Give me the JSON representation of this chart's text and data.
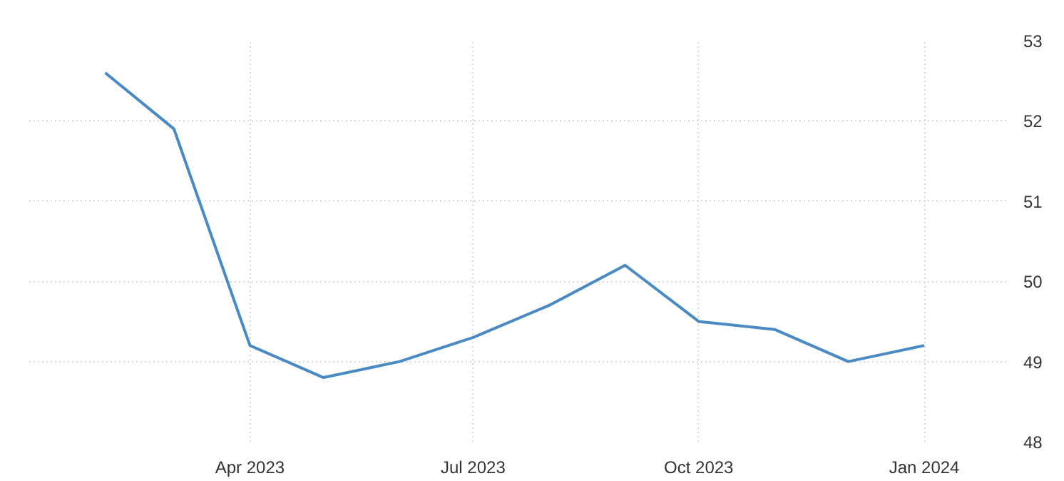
{
  "chart_data": {
    "type": "line",
    "x": [
      "2023-02",
      "2023-03",
      "2023-04",
      "2023-05",
      "2023-06",
      "2023-07",
      "2023-08",
      "2023-09",
      "2023-10",
      "2023-11",
      "2023-12",
      "2024-01"
    ],
    "series": [
      {
        "color": "#4a8ac4",
        "values": [
          52.6,
          51.9,
          49.2,
          48.8,
          49.0,
          49.3,
          49.7,
          50.2,
          49.5,
          49.4,
          49.0,
          49.2
        ]
      }
    ],
    "xlim": [
      "2023-01-01",
      "2024-02-04"
    ],
    "xticks": [
      {
        "value": "2023-04",
        "label": "Apr 2023"
      },
      {
        "value": "2023-07",
        "label": "Jul 2023"
      },
      {
        "value": "2023-10",
        "label": "Oct 2023"
      },
      {
        "value": "2024-01",
        "label": "Jan 2024"
      }
    ],
    "ylim": [
      48,
      53
    ],
    "yticks": [
      48,
      49,
      50,
      51,
      52,
      53
    ],
    "grid": true,
    "marker": "none",
    "line_style": "solid"
  }
}
